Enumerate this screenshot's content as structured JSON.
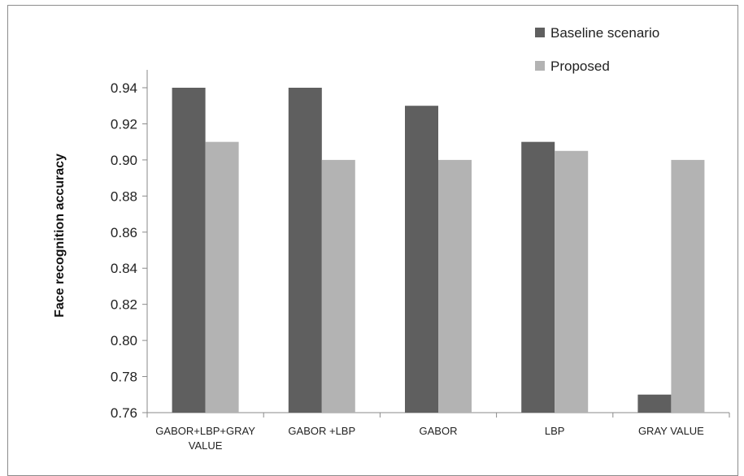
{
  "chart_data": {
    "type": "bar",
    "title": "",
    "xlabel": "",
    "ylabel": "Face recognition accuracy",
    "ylim": [
      0.76,
      0.95
    ],
    "yticks": [
      "0.76",
      "0.78",
      "0.80",
      "0.82",
      "0.84",
      "0.86",
      "0.88",
      "0.90",
      "0.92",
      "0.94"
    ],
    "categories": [
      [
        "GABOR+LBP+GRAY",
        "VALUE"
      ],
      [
        "GABOR +LBP"
      ],
      [
        "GABOR"
      ],
      [
        "LBP"
      ],
      [
        "GRAY VALUE"
      ]
    ],
    "series": [
      {
        "name": "Baseline scenario",
        "color": "#5f5f5f",
        "values": [
          0.94,
          0.94,
          0.93,
          0.91,
          0.77
        ]
      },
      {
        "name": "Proposed",
        "color": "#b3b3b3",
        "values": [
          0.91,
          0.9,
          0.9,
          0.905,
          0.9
        ]
      }
    ],
    "grid": false,
    "legend": "top-right"
  }
}
